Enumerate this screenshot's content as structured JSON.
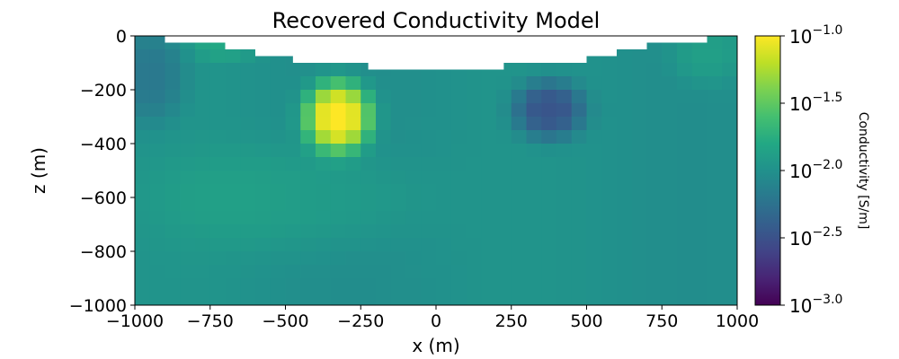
{
  "chart_data": {
    "type": "heatmap",
    "title": "Recovered Conductivity Model",
    "xlabel": "x (m)",
    "ylabel": "z (m)",
    "xlim": [
      -1000,
      1000
    ],
    "ylim": [
      -1000,
      0
    ],
    "xticks": [
      -1000,
      -750,
      -500,
      -250,
      0,
      250,
      500,
      750,
      1000
    ],
    "xtick_labels": [
      "−1000",
      "−750",
      "−500",
      "−250",
      "0",
      "250",
      "500",
      "750",
      "1000"
    ],
    "yticks": [
      0,
      -200,
      -400,
      -600,
      -800,
      -1000
    ],
    "ytick_labels": [
      "0",
      "−200",
      "−400",
      "−600",
      "−800",
      "−1000"
    ],
    "cell_size_m": 50,
    "colormap": "viridis",
    "color_scale": "log10",
    "clim_log10": [
      -3.0,
      -1.0
    ],
    "colorbar": {
      "label": "Conductivity [S/m]",
      "ticks": [
        -1.0,
        -1.5,
        -2.0,
        -2.5,
        -3.0
      ],
      "tick_labels": [
        "-1.0",
        "-1.5",
        "-2.0",
        "-2.5",
        "-3.0"
      ],
      "base": "10"
    },
    "background_log10": -2.0,
    "topography": {
      "x": [
        -1000,
        -900,
        -900,
        -700,
        -700,
        -600,
        -600,
        -475,
        -475,
        -225,
        -225,
        225,
        225,
        500,
        500,
        600,
        600,
        700,
        700,
        900,
        900,
        1000
      ],
      "z": [
        0,
        0,
        -25,
        -25,
        -50,
        -50,
        -75,
        -75,
        -100,
        -100,
        -125,
        -125,
        -100,
        -100,
        -75,
        -75,
        -50,
        -50,
        -25,
        -25,
        0,
        0
      ]
    },
    "anomalies": [
      {
        "name": "conductive block",
        "x": -325,
        "z": -300,
        "rx": 110,
        "rz": 130,
        "delta_log10": 1.05
      },
      {
        "name": "resistive block",
        "x": 375,
        "z": -275,
        "rx": 120,
        "rz": 110,
        "delta_log10": -0.5
      },
      {
        "name": "near-surface resistive",
        "x": -950,
        "z": -150,
        "rx": 120,
        "rz": 180,
        "delta_log10": -0.22
      },
      {
        "name": "shallow conductive left",
        "x": -700,
        "z": -30,
        "rx": 120,
        "rz": 60,
        "delta_log10": 0.18
      },
      {
        "name": "shallow conductive right",
        "x": 900,
        "z": -60,
        "rx": 120,
        "rz": 120,
        "delta_log10": 0.15
      },
      {
        "name": "mid-depth conductive",
        "x": -500,
        "z": -600,
        "rx": 450,
        "rz": 200,
        "delta_log10": 0.12
      }
    ]
  }
}
